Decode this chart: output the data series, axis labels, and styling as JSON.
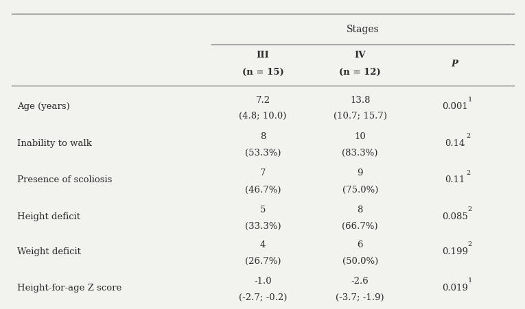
{
  "title": "Stages",
  "row_labels": [
    "Age (years)",
    "Inability to walk",
    "Presence of scoliosis",
    "Height deficit",
    "Weight deficit",
    "Height-for-age Z score"
  ],
  "col_III": [
    [
      "7.2",
      "(4.8; 10.0)"
    ],
    [
      "8",
      "(53.3%)"
    ],
    [
      "7",
      "(46.7%)"
    ],
    [
      "5",
      "(33.3%)"
    ],
    [
      "4",
      "(26.7%)"
    ],
    [
      "-1.0",
      "(-2.7; -0.2)"
    ]
  ],
  "col_IV": [
    [
      "13.8",
      "(10.7; 15.7)"
    ],
    [
      "10",
      "(83.3%)"
    ],
    [
      "9",
      "(75.0%)"
    ],
    [
      "8",
      "(66.7%)"
    ],
    [
      "6",
      "(50.0%)"
    ],
    [
      "-2.6",
      "(-3.7; -1.9)"
    ]
  ],
  "col_P": [
    [
      "0.001",
      "1"
    ],
    [
      "0.14",
      "2"
    ],
    [
      "0.11",
      "2"
    ],
    [
      "0.085",
      "2"
    ],
    [
      "0.199",
      "2"
    ],
    [
      "0.019",
      "1"
    ]
  ],
  "bg_color": "#f2f2ee",
  "text_color": "#2a2a2a",
  "line_color": "#555555",
  "font_size": 9.5,
  "header_font_size": 9.5
}
